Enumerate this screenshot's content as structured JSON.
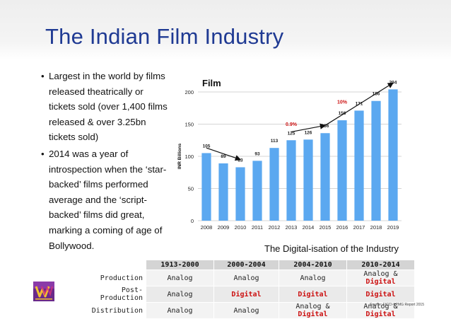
{
  "slide": {
    "title": "The Indian Film Industry",
    "bullets": [
      "Largest in the world by films released theatrically or tickets sold (over 1,400 films released & over 3.25bn tickets sold)",
      "2014 was a year of introspection when the ‘star-backed’ films performed average and the ‘script-backed’ films did great, marking a coming of age of Bollywood."
    ],
    "bullet_symbol": "•",
    "digital_caption": "The Digital-isation of the Industry",
    "source": "Source: FICCI-KPMG Report 2015",
    "colors": {
      "title": "#1f3a93",
      "bar": "#5ba8f0",
      "highlight": "#cc1111"
    }
  },
  "chart_data": {
    "type": "bar",
    "title": "Film",
    "ylabel": "INR Billions",
    "categories": [
      "2008",
      "2009",
      "2010",
      "2011",
      "2012",
      "2013",
      "2014",
      "2015",
      "2016",
      "2017",
      "2018",
      "2019"
    ],
    "values": [
      105,
      89,
      83,
      93,
      113,
      125,
      126,
      136,
      156,
      171,
      186,
      204
    ],
    "ylim": [
      0,
      200
    ],
    "yticks": [
      0,
      50,
      100,
      150,
      200
    ],
    "grid": true,
    "annotations": [
      "0.9%",
      "10%"
    ]
  },
  "digitalisation_table": {
    "headers": [
      "1913-2000",
      "2000-2004",
      "2004-2010",
      "2010-2014"
    ],
    "rows": [
      {
        "label": "Production",
        "cells": [
          [
            {
              "t": "Analog",
              "hl": false
            }
          ],
          [
            {
              "t": "Analog",
              "hl": false
            }
          ],
          [
            {
              "t": "Analog",
              "hl": false
            }
          ],
          [
            {
              "t": "Analog & ",
              "hl": false
            },
            {
              "t": "Digital",
              "hl": true
            }
          ]
        ]
      },
      {
        "label": "Post-Production",
        "cells": [
          [
            {
              "t": "Analog",
              "hl": false
            }
          ],
          [
            {
              "t": "Digital",
              "hl": true
            }
          ],
          [
            {
              "t": "Digital",
              "hl": true
            }
          ],
          [
            {
              "t": "Digital",
              "hl": true
            }
          ]
        ]
      },
      {
        "label": "Distribution",
        "cells": [
          [
            {
              "t": "Analog",
              "hl": false
            }
          ],
          [
            {
              "t": "Analog",
              "hl": false
            }
          ],
          [
            {
              "t": "Analog & ",
              "hl": false
            },
            {
              "t": "Digital",
              "hl": true
            }
          ],
          [
            {
              "t": "Analog & ",
              "hl": false
            },
            {
              "t": "Digital",
              "hl": true
            }
          ]
        ]
      }
    ]
  }
}
